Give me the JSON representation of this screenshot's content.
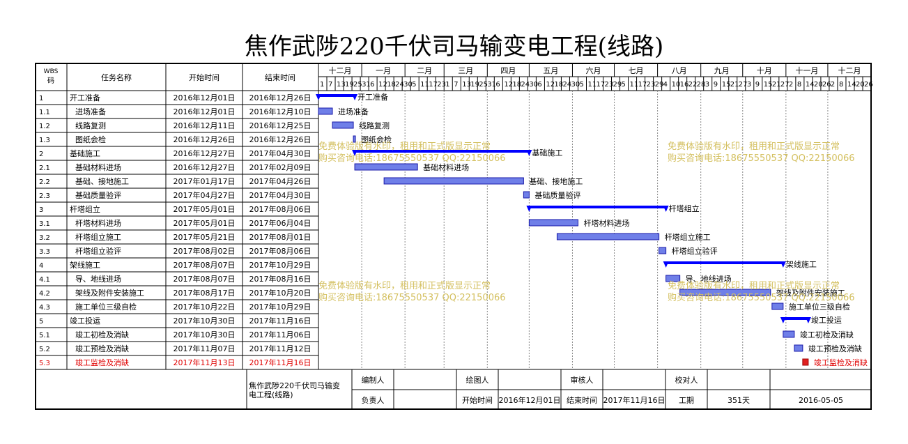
{
  "document_title": "焦作武陟220千伏司马输变电工程(线路)",
  "columns": {
    "wbs": "WBS码",
    "name": "任务名称",
    "start": "开始时间",
    "end": "结束时间"
  },
  "months": [
    "十二月",
    "一月",
    "二月",
    "三月",
    "四月",
    "五月",
    "六月",
    "七月",
    "八月",
    "九月",
    "十月",
    "十一月",
    "十二月"
  ],
  "day_ticks": [
    {
      "month": "十二月",
      "days": [
        "1",
        "7",
        "13",
        "19",
        "25"
      ]
    },
    {
      "month": "一月",
      "days": [
        "31",
        "6",
        "12",
        "18",
        "24"
      ]
    },
    {
      "month": "二月",
      "days": [
        "30",
        "5",
        "11",
        "17",
        "23"
      ]
    },
    {
      "month": "三月",
      "days": [
        "1",
        "7",
        "13",
        "19",
        "25"
      ]
    },
    {
      "month": "四月",
      "days": [
        "31",
        "6",
        "12",
        "18",
        "24"
      ]
    },
    {
      "month": "五月",
      "days": [
        "30",
        "6",
        "12",
        "18",
        "24"
      ]
    },
    {
      "month": "六月",
      "days": [
        "30",
        "5",
        "11",
        "17",
        "23"
      ]
    },
    {
      "month": "七月",
      "days": [
        "29",
        "5",
        "11",
        "17",
        "23",
        "29"
      ]
    },
    {
      "month": "八月",
      "days": [
        "4",
        "10",
        "16",
        "22",
        "28"
      ]
    },
    {
      "month": "九月",
      "days": [
        "3",
        "9",
        "15",
        "21",
        "27"
      ]
    },
    {
      "month": "十月",
      "days": [
        "3",
        "9",
        "15",
        "21",
        "27"
      ]
    },
    {
      "month": "十一月",
      "days": [
        "2",
        "8",
        "14",
        "20",
        "26"
      ]
    },
    {
      "month": "十二月",
      "days": [
        "2",
        "8",
        "14",
        "20",
        "26"
      ]
    }
  ],
  "tasks": [
    {
      "wbs": "1",
      "name": "开工准备",
      "start": "2016年12月01日",
      "end": "2016年12月26日",
      "level": 1,
      "bar_label": "开工准备",
      "highlight": false
    },
    {
      "wbs": "1.1",
      "name": "进场准备",
      "start": "2016年12月01日",
      "end": "2016年12月10日",
      "level": 2,
      "bar_label": "进场准备",
      "highlight": false
    },
    {
      "wbs": "1.2",
      "name": "线路复测",
      "start": "2016年12月11日",
      "end": "2016年12月25日",
      "level": 2,
      "bar_label": "线路复测",
      "highlight": false
    },
    {
      "wbs": "1.3",
      "name": "图纸会检",
      "start": "2016年12月26日",
      "end": "2016年12月26日",
      "level": 2,
      "bar_label": "图纸会检",
      "highlight": false
    },
    {
      "wbs": "2",
      "name": "基础施工",
      "start": "2016年12月27日",
      "end": "2017年04月30日",
      "level": 1,
      "bar_label": "基础施工",
      "highlight": false
    },
    {
      "wbs": "2.1",
      "name": "基础材料进场",
      "start": "2016年12月27日",
      "end": "2017年02月09日",
      "level": 2,
      "bar_label": "基础材料进场",
      "highlight": false
    },
    {
      "wbs": "2.2",
      "name": "基础、接地施工",
      "start": "2017年01月17日",
      "end": "2017年04月26日",
      "level": 2,
      "bar_label": "基础、接地施工",
      "highlight": false
    },
    {
      "wbs": "2.3",
      "name": "基础质量验评",
      "start": "2017年04月27日",
      "end": "2017年04月30日",
      "level": 2,
      "bar_label": "基础质量验评",
      "highlight": false
    },
    {
      "wbs": "3",
      "name": "杆塔组立",
      "start": "2017年05月01日",
      "end": "2017年08月06日",
      "level": 1,
      "bar_label": "杆塔组立",
      "highlight": false
    },
    {
      "wbs": "3.1",
      "name": "杆塔材料进场",
      "start": "2017年05月01日",
      "end": "2017年06月04日",
      "level": 2,
      "bar_label": "杆塔材料进场",
      "highlight": false
    },
    {
      "wbs": "3.2",
      "name": "杆塔组立施工",
      "start": "2017年05月21日",
      "end": "2017年08月01日",
      "level": 2,
      "bar_label": "杆塔组立施工",
      "highlight": false
    },
    {
      "wbs": "3.3",
      "name": "杆塔组立验评",
      "start": "2017年08月02日",
      "end": "2017年08月06日",
      "level": 2,
      "bar_label": "杆塔组立验评",
      "highlight": false
    },
    {
      "wbs": "4",
      "name": "架线施工",
      "start": "2017年08月07日",
      "end": "2017年10月29日",
      "level": 1,
      "bar_label": "架线施工",
      "highlight": false
    },
    {
      "wbs": "4.1",
      "name": "导、地线进场",
      "start": "2017年08月07日",
      "end": "2017年08月16日",
      "level": 2,
      "bar_label": "导、地线进场",
      "highlight": false
    },
    {
      "wbs": "4.2",
      "name": "架线及附件安装施工",
      "start": "2017年08月17日",
      "end": "2017年10月20日",
      "level": 2,
      "bar_label": "架线及附件安装施工",
      "highlight": false
    },
    {
      "wbs": "4.3",
      "name": "施工单位三级自检",
      "start": "2017年10月22日",
      "end": "2017年10月29日",
      "level": 2,
      "bar_label": "施工单位三级自检",
      "highlight": false
    },
    {
      "wbs": "5",
      "name": "竣工投运",
      "start": "2017年10月30日",
      "end": "2017年11月16日",
      "level": 1,
      "bar_label": "竣工投运",
      "highlight": false
    },
    {
      "wbs": "5.1",
      "name": "竣工初检及消缺",
      "start": "2017年10月30日",
      "end": "2017年11月06日",
      "level": 2,
      "bar_label": "竣工初检及消缺",
      "highlight": false
    },
    {
      "wbs": "5.2",
      "name": "竣工预检及消缺",
      "start": "2017年11月07日",
      "end": "2017年11月12日",
      "level": 2,
      "bar_label": "竣工预检及消缺",
      "highlight": false
    },
    {
      "wbs": "5.3",
      "name": "竣工监检及消缺",
      "start": "2017年11月13日",
      "end": "2017年11月16日",
      "level": 2,
      "bar_label": "竣工监检及消缺",
      "highlight": true
    }
  ],
  "watermark": {
    "line1": "免费体验版有水印，租用和正式版显示正常",
    "line2": "购买咨询电话:18675550537 QQ:22150066"
  },
  "footer": {
    "project_name": "焦作武陟220千伏司马输变电工程(线路)",
    "compiler_label": "编制人",
    "drafter_label": "绘图人",
    "reviewer_label": "审核人",
    "proofreader_label": "校对人",
    "owner_label": "负责人",
    "start_label": "开始时间",
    "start_value": "2016年12月01日",
    "end_label": "结束时间",
    "end_value": "2017年11月16日",
    "duration_label": "工期",
    "duration_value": "351天",
    "date_value": "2016-05-05"
  },
  "colors": {
    "summary_bar": "#0000ff",
    "task_bar_fill": "#6f7fe8",
    "task_bar_border": "#1a1aa8",
    "highlight_text": "#e00000",
    "highlight_bar": "#e02020",
    "watermark": "#d4c060",
    "grid": "#000000",
    "grid_dashed": "#888888"
  }
}
